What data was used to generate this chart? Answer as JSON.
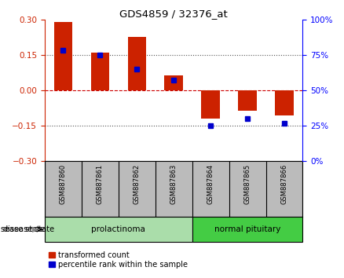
{
  "title": "GDS4859 / 32376_at",
  "samples": [
    "GSM887860",
    "GSM887861",
    "GSM887862",
    "GSM887863",
    "GSM887864",
    "GSM887865",
    "GSM887866"
  ],
  "transformed_count": [
    0.29,
    0.161,
    0.225,
    0.063,
    -0.118,
    -0.085,
    -0.105
  ],
  "percentile_rank": [
    78,
    75,
    65,
    57,
    25,
    30,
    27
  ],
  "ylim_left": [
    -0.3,
    0.3
  ],
  "ylim_right": [
    0,
    100
  ],
  "yticks_left": [
    -0.3,
    -0.15,
    0,
    0.15,
    0.3
  ],
  "yticks_right": [
    0,
    25,
    50,
    75,
    100
  ],
  "disease_groups": [
    {
      "label": "prolactinoma",
      "count": 4,
      "color": "#aaddaa"
    },
    {
      "label": "normal pituitary",
      "count": 3,
      "color": "#44cc44"
    }
  ],
  "bar_color_red": "#cc2200",
  "bar_color_blue": "#0000cc",
  "zero_line_color": "#cc0000",
  "dotted_line_color": "#555555",
  "bg_color": "#ffffff",
  "sample_bg_color": "#bbbbbb",
  "legend_red_label": "transformed count",
  "legend_blue_label": "percentile rank within the sample",
  "disease_state_label": "disease state",
  "bar_width": 0.5
}
